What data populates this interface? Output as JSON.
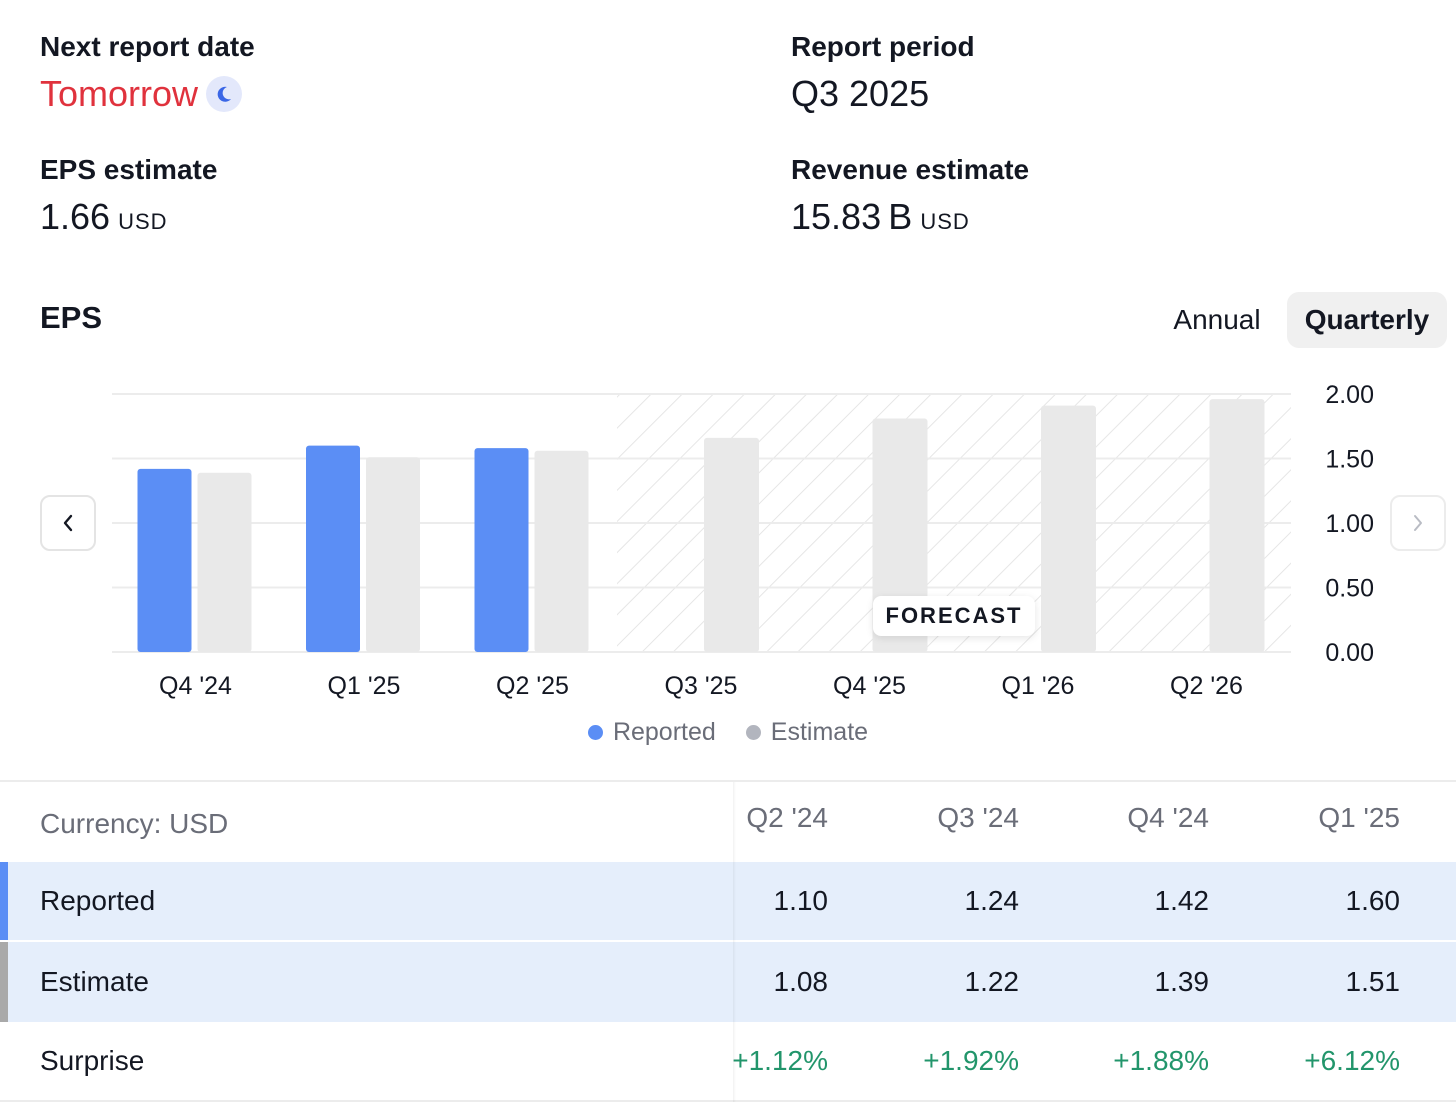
{
  "next_report": {
    "label": "Next report date",
    "value": "Tomorrow",
    "icon": "moon-icon"
  },
  "report_period": {
    "label": "Report period",
    "value": "Q3 2025"
  },
  "eps_estimate": {
    "label": "EPS estimate",
    "value": "1.66",
    "unit": "USD"
  },
  "revenue_estimate": {
    "label": "Revenue estimate",
    "value": "15.83 B",
    "unit": "USD"
  },
  "section_title": "EPS",
  "period_toggle": {
    "annual": "Annual",
    "quarterly": "Quarterly",
    "selected": "Quarterly"
  },
  "forecast_label": "FORECAST",
  "legend": {
    "reported": "Reported",
    "estimate": "Estimate"
  },
  "colors": {
    "reported": "#5b8ef5",
    "estimate": "#e9e9e9",
    "surprise_positive": "#22956b",
    "accent_text": "#e0323d"
  },
  "chart_data": {
    "type": "bar",
    "title": "EPS",
    "categories": [
      "Q4 '24",
      "Q1 '25",
      "Q2 '25",
      "Q3 '25",
      "Q4 '25",
      "Q1 '26",
      "Q2 '26"
    ],
    "series": [
      {
        "name": "Reported",
        "values": [
          1.42,
          1.6,
          1.58,
          null,
          null,
          null,
          null
        ]
      },
      {
        "name": "Estimate",
        "values": [
          1.39,
          1.51,
          1.56,
          1.66,
          1.81,
          1.91,
          1.96
        ]
      }
    ],
    "forecast_start_category": "Q3 '25",
    "y_ticks": [
      "2.00",
      "1.50",
      "1.00",
      "0.50",
      "0.00"
    ],
    "ylim": [
      0,
      2.0
    ],
    "xlabel": "",
    "ylabel": "",
    "grid": true,
    "legend_position": "bottom"
  },
  "table": {
    "currency_label": "Currency: USD",
    "columns": [
      "Q2 '24",
      "Q3 '24",
      "Q4 '24",
      "Q1 '25"
    ],
    "rows": [
      {
        "label": "Reported",
        "values": [
          "1.10",
          "1.24",
          "1.42",
          "1.60"
        ]
      },
      {
        "label": "Estimate",
        "values": [
          "1.08",
          "1.22",
          "1.39",
          "1.51"
        ]
      },
      {
        "label": "Surprise",
        "values": [
          "+1.12%",
          "+1.92%",
          "+1.88%",
          "+6.12%"
        ]
      }
    ]
  }
}
